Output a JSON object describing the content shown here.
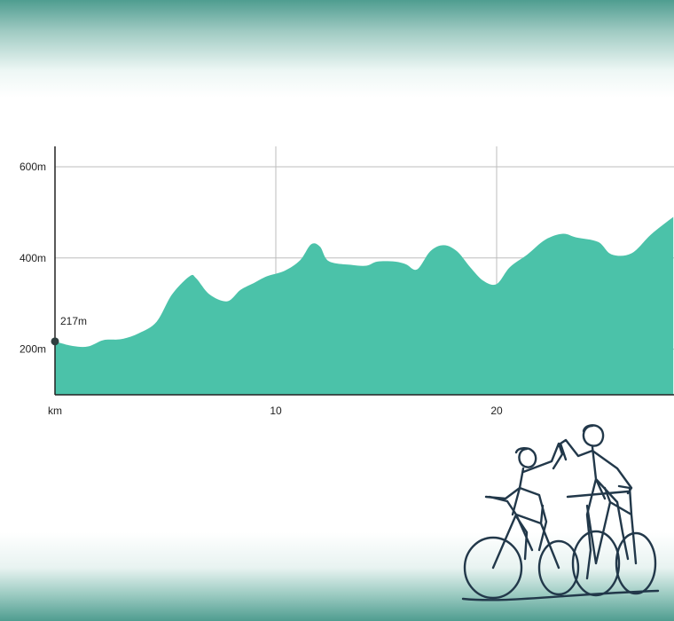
{
  "chart_data": {
    "type": "area",
    "title": "",
    "xlabel": "km",
    "ylabel": "",
    "x_unit_label": "km",
    "xlim": [
      0,
      28
    ],
    "ylim": [
      100,
      650
    ],
    "x_ticks": [
      {
        "value": 0,
        "label": "km"
      },
      {
        "value": 10,
        "label": "10"
      },
      {
        "value": 20,
        "label": "20"
      }
    ],
    "y_ticks": [
      {
        "value": 200,
        "label": "200m"
      },
      {
        "value": 400,
        "label": "400m"
      },
      {
        "value": 600,
        "label": "600m"
      }
    ],
    "grid": true,
    "colors": {
      "fill": "#4bc2a9",
      "axis": "#222222",
      "grid": "#bdbdbd",
      "marker": "#2f3f3f"
    },
    "marker": {
      "x": 0,
      "y": 217,
      "label": "217m"
    },
    "series": [
      {
        "x": [
          0,
          0.8,
          1.5,
          2.2,
          3,
          3.8,
          4.6,
          5.3,
          6.1,
          6.4,
          7,
          7.8,
          8.4,
          9,
          9.6,
          10.4,
          11.1,
          11.6,
          12,
          12.4,
          13.4,
          14.1,
          14.6,
          15.4,
          15.9,
          16.4,
          17,
          17.6,
          18.2,
          18.8,
          19.4,
          20,
          20.6,
          21.4,
          22.2,
          23,
          23.6,
          24.6,
          25.2,
          26.1,
          27,
          28
        ],
        "y": [
          217,
          207,
          206,
          220,
          222,
          235,
          260,
          320,
          360,
          355,
          320,
          305,
          330,
          345,
          360,
          372,
          395,
          430,
          425,
          393,
          385,
          383,
          392,
          392,
          386,
          375,
          415,
          428,
          415,
          380,
          350,
          343,
          380,
          408,
          440,
          453,
          445,
          435,
          408,
          410,
          452,
          490
        ]
      }
    ]
  }
}
